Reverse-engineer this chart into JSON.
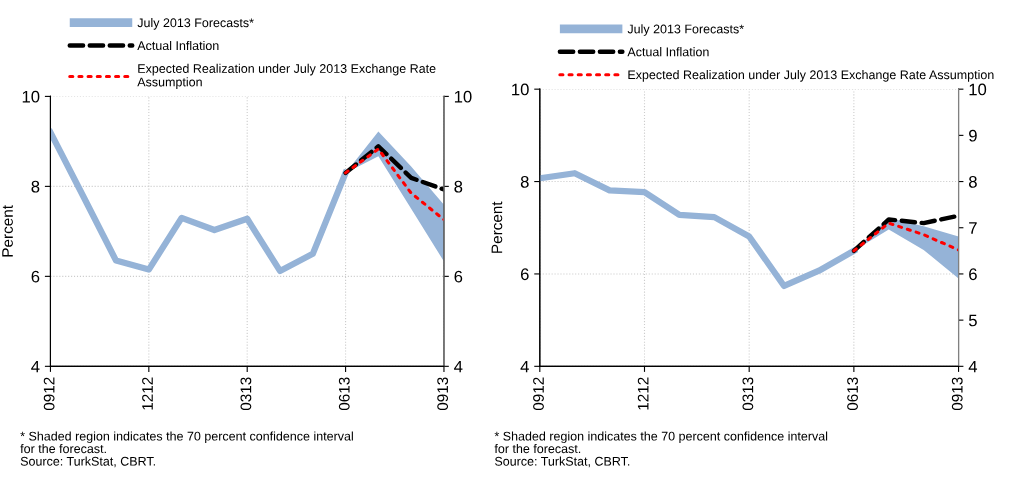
{
  "chart_data": [
    {
      "type": "line",
      "ylabel": "Percent",
      "categories": [
        "0912",
        null,
        null,
        "1212",
        null,
        null,
        "0313",
        null,
        null,
        "0613",
        null,
        null,
        "0913"
      ],
      "ylim": [
        4,
        10
      ],
      "yticks": [
        4,
        6,
        8,
        10
      ],
      "y2lim": [
        4,
        10
      ],
      "y2ticks": [
        4,
        6,
        8,
        10
      ],
      "grid": true,
      "legend": "top",
      "marker": "none",
      "series": [
        {
          "name": "July 2013 Forecasts*",
          "color": "#95b3d7",
          "values": [
            9.2,
            7.78,
            6.35,
            6.15,
            7.3,
            7.03,
            7.28,
            6.12,
            6.5,
            8.3,
            null,
            null,
            null
          ],
          "lower": [
            null,
            null,
            null,
            null,
            null,
            null,
            null,
            null,
            null,
            8.3,
            8.67,
            7.5,
            6.33
          ],
          "upper": [
            null,
            null,
            null,
            null,
            null,
            null,
            null,
            null,
            null,
            8.3,
            9.22,
            8.44,
            7.59
          ]
        },
        {
          "name": "Actual Inflation",
          "color": "#000000",
          "line_style": "dashed",
          "values": [
            null,
            null,
            null,
            null,
            null,
            null,
            null,
            null,
            null,
            8.3,
            8.89,
            8.19,
            7.93
          ]
        },
        {
          "name": "Expected Realization under July 2013 Exchange Rate\nAssumption",
          "color": "#ff0000",
          "line_style": "dotted",
          "values": [
            null,
            null,
            null,
            null,
            null,
            null,
            null,
            null,
            null,
            8.3,
            8.83,
            7.85,
            7.26
          ]
        }
      ],
      "annotations": [
        "* Shaded region indicates the 70 percent confidence interval\nfor the forecast.",
        "Source: TurkStat, CBRT."
      ]
    },
    {
      "type": "line",
      "ylabel": "Percent",
      "categories": [
        "0912",
        null,
        null,
        "1212",
        null,
        null,
        "0313",
        null,
        null,
        "0613",
        null,
        null,
        "0913"
      ],
      "ylim": [
        4,
        10
      ],
      "yticks": [
        4,
        6,
        8,
        10
      ],
      "y2lim": [
        4,
        10
      ],
      "y2ticks": [
        4,
        5,
        6,
        7,
        8,
        9,
        10
      ],
      "grid": true,
      "legend": "top",
      "marker": "none",
      "series": [
        {
          "name": "July 2013 Forecasts*",
          "color": "#95b3d7",
          "values": [
            8.07,
            8.18,
            7.81,
            7.77,
            7.28,
            7.23,
            6.81,
            5.74,
            6.07,
            6.5,
            null,
            null,
            null
          ],
          "lower": [
            null,
            null,
            null,
            null,
            null,
            null,
            null,
            null,
            null,
            6.5,
            6.96,
            6.52,
            5.9
          ],
          "upper": [
            null,
            null,
            null,
            null,
            null,
            null,
            null,
            null,
            null,
            6.5,
            7.21,
            7.03,
            6.81
          ]
        },
        {
          "name": "Actual Inflation",
          "color": "#000000",
          "line_style": "dashed",
          "values": [
            null,
            null,
            null,
            null,
            null,
            null,
            null,
            null,
            null,
            6.5,
            7.18,
            7.1,
            7.26
          ]
        },
        {
          "name": "Expected Realization under July 2013 Exchange Rate Assumption",
          "color": "#ff0000",
          "line_style": "dotted",
          "values": [
            null,
            null,
            null,
            null,
            null,
            null,
            null,
            null,
            null,
            6.5,
            7.1,
            6.85,
            6.52
          ]
        }
      ],
      "annotations": [
        "* Shaded region indicates the 70 percent confidence interval\nfor the forecast.",
        "Source: TurkStat, CBRT."
      ]
    }
  ]
}
